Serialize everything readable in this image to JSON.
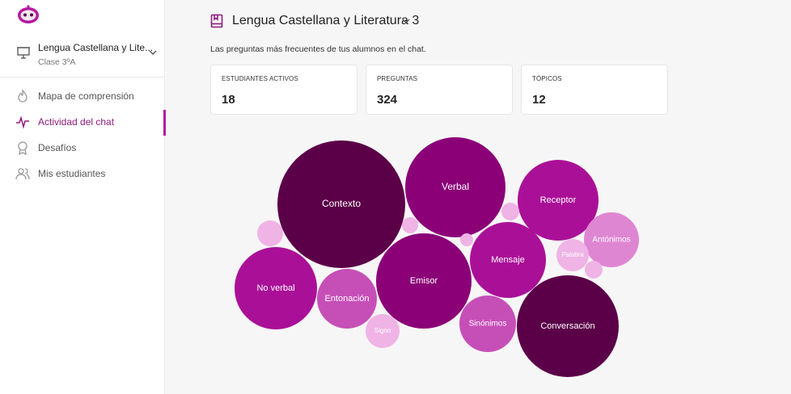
{
  "colors": {
    "accent": "#8e1a7c",
    "active_bar": "#b21aa0",
    "bubble_darkest": "#5b0048",
    "bubble_dark": "#8b0077",
    "bubble_mid": "#aa1097",
    "bubble_light": "#c64fb7",
    "bubble_lighter": "#df86d2",
    "bubble_lightest": "#efb3e5"
  },
  "sidebar": {
    "logo_icon": "robot-face-icon",
    "class_selector": {
      "icon": "presentation-board-icon",
      "course": "Lengua Castellana y Lite...",
      "group": "Clase 3ºA"
    },
    "nav": [
      {
        "label": "Mapa de comprensión",
        "icon": "flame-icon",
        "active": false
      },
      {
        "label": "Actividad del chat",
        "icon": "activity-pulse-icon",
        "active": true
      },
      {
        "label": "Desafíos",
        "icon": "award-ribbon-icon",
        "active": false
      },
      {
        "label": "Mis estudiantes",
        "icon": "users-icon",
        "active": false
      }
    ]
  },
  "header": {
    "title": "Lengua Castellana y Literatura 3",
    "icon": "book-icon"
  },
  "subtitle": "Las preguntas más frecuentes de tus alumnos en el chat.",
  "stats": [
    {
      "label": "ESTUDIANTES ACTIVOS",
      "value": "18"
    },
    {
      "label": "PREGUNTAS",
      "value": "324"
    },
    {
      "label": "TÓPICOS",
      "value": "12"
    }
  ],
  "bubbles": [
    {
      "label": "Contexto",
      "shade": "darkest"
    },
    {
      "label": "Verbal",
      "shade": "dark"
    },
    {
      "label": "Receptor",
      "shade": "mid"
    },
    {
      "label": "Antónimos",
      "shade": "lighter"
    },
    {
      "label": "Mensaje",
      "shade": "mid"
    },
    {
      "label": "Palabra",
      "shade": "lightest"
    },
    {
      "label": "Emisor",
      "shade": "dark"
    },
    {
      "label": "No verbal",
      "shade": "mid"
    },
    {
      "label": "Entonación",
      "shade": "light"
    },
    {
      "label": "Signo",
      "shade": "lightest"
    },
    {
      "label": "Sinónimos",
      "shade": "light"
    },
    {
      "label": "Conversación",
      "shade": "darkest"
    },
    {
      "label": "",
      "shade": "lightest"
    },
    {
      "label": "",
      "shade": "lightest"
    },
    {
      "label": "",
      "shade": "lightest"
    },
    {
      "label": "",
      "shade": "lightest"
    },
    {
      "label": "",
      "shade": "lightest"
    }
  ]
}
